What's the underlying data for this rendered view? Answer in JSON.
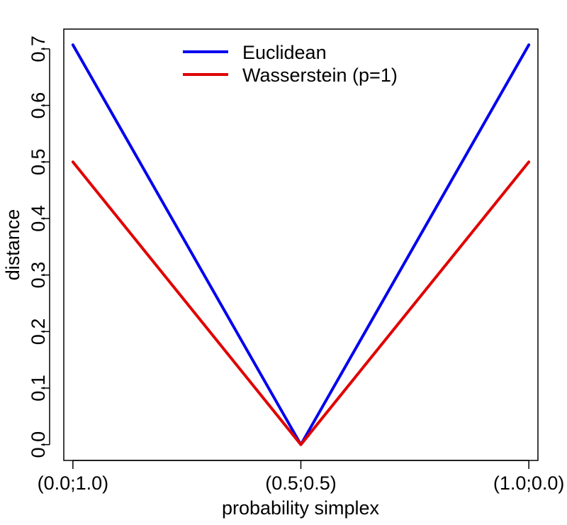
{
  "chart_data": {
    "type": "line",
    "title": "",
    "xlabel": "probability simplex",
    "ylabel": "distance",
    "x": [
      0,
      0.5,
      1
    ],
    "x_tick_labels": [
      "(0.0;1.0)",
      "(0.5;0.5)",
      "(1.0;0.0)"
    ],
    "y_ticks": [
      "0.0",
      "0.1",
      "0.2",
      "0.3",
      "0.4",
      "0.5",
      "0.6",
      "0.7"
    ],
    "xlim": [
      -0.02,
      1.02
    ],
    "ylim": [
      -0.028,
      0.735
    ],
    "grid": false,
    "legend_position": "top-center",
    "series": [
      {
        "name": "Euclidean",
        "color": "#0000ee",
        "values": [
          0.7071,
          0.0,
          0.7071
        ]
      },
      {
        "name": "Wasserstein (p=1)",
        "color": "#e00000",
        "values": [
          0.5,
          0.0,
          0.5
        ]
      }
    ]
  }
}
